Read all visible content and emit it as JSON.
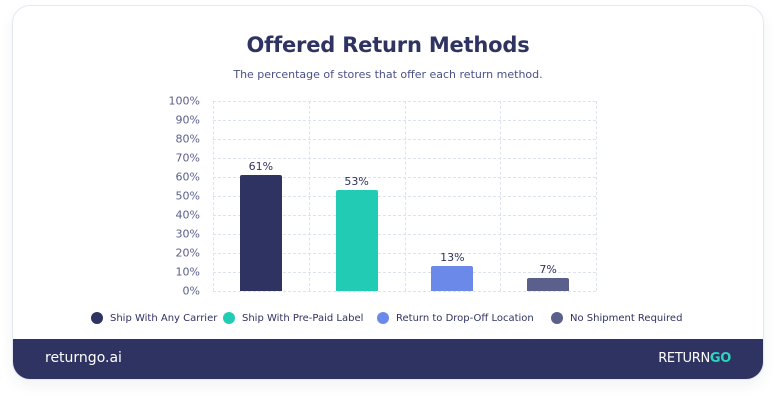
{
  "header": {
    "title": "Offered Return Methods",
    "subtitle": "The percentage of stores that offer each return method."
  },
  "chart_data": {
    "type": "bar",
    "title": "Offered Return Methods",
    "subtitle": "The percentage of stores that offer each return method.",
    "xlabel": "",
    "ylabel": "",
    "categories": [
      "Ship With Any Carrier",
      "Ship With Pre-Paid Label",
      "Return to Drop-Off Location",
      "No Shipment Required"
    ],
    "values": [
      61,
      53,
      13,
      7
    ],
    "value_labels": [
      "61%",
      "53%",
      "13%",
      "7%"
    ],
    "colors": [
      "#2e3362",
      "#22ccb4",
      "#6b89e8",
      "#5a5f8c"
    ],
    "ylim": [
      0,
      100
    ],
    "yticks": [
      "0%",
      "10%",
      "20%",
      "30%",
      "40%",
      "50%",
      "60%",
      "70%",
      "80%",
      "90%",
      "100%"
    ],
    "grid": true,
    "legend_position": "bottom"
  },
  "legend": [
    {
      "label": "Ship With Any Carrier",
      "color": "#2e3362"
    },
    {
      "label": "Ship With Pre-Paid Label",
      "color": "#22ccb4"
    },
    {
      "label": "Return to Drop-Off Location",
      "color": "#6b89e8"
    },
    {
      "label": "No Shipment Required",
      "color": "#5a5f8c"
    }
  ],
  "footer": {
    "site": "returngo.ai",
    "logo_part1": "RETURN",
    "logo_part2": "GO",
    "background": "#2e3362",
    "accent": "#2dd4bf"
  }
}
